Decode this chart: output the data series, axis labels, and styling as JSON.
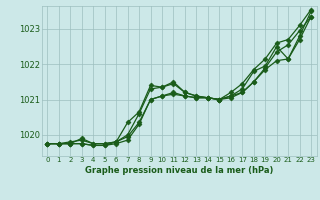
{
  "xlabel": "Graphe pression niveau de la mer (hPa)",
  "ylim": [
    1019.4,
    1023.65
  ],
  "xlim": [
    -0.5,
    23.5
  ],
  "yticks": [
    1020,
    1021,
    1022,
    1023
  ],
  "xticks": [
    0,
    1,
    2,
    3,
    4,
    5,
    6,
    7,
    8,
    9,
    10,
    11,
    12,
    13,
    14,
    15,
    16,
    17,
    18,
    19,
    20,
    21,
    22,
    23
  ],
  "bg_color": "#cce8e8",
  "grid_color": "#9dbfbf",
  "line_color": "#1a5c1a",
  "line1": [
    1019.75,
    1019.75,
    1019.75,
    1019.9,
    1019.75,
    1019.75,
    1019.8,
    1020.35,
    1020.65,
    1021.4,
    1021.35,
    1021.5,
    1021.2,
    1021.1,
    1021.05,
    1021.0,
    1021.1,
    1021.3,
    1021.8,
    1021.95,
    1022.5,
    1022.15,
    1022.8,
    1023.5
  ],
  "line2": [
    1019.75,
    1019.75,
    1019.75,
    1019.75,
    1019.7,
    1019.7,
    1019.75,
    1019.85,
    1020.3,
    1021.0,
    1021.1,
    1021.2,
    1021.1,
    1021.05,
    1021.05,
    1021.0,
    1021.05,
    1021.2,
    1021.5,
    1021.85,
    1022.1,
    1022.15,
    1022.7,
    1023.35
  ],
  "line3": [
    1019.75,
    1019.75,
    1019.75,
    1019.75,
    1019.7,
    1019.7,
    1019.8,
    1019.95,
    1020.35,
    1021.0,
    1021.1,
    1021.15,
    1021.1,
    1021.05,
    1021.05,
    1021.0,
    1021.1,
    1021.2,
    1021.5,
    1021.9,
    1022.35,
    1022.55,
    1022.95,
    1023.35
  ],
  "line4": [
    1019.75,
    1019.75,
    1019.8,
    1019.85,
    1019.75,
    1019.75,
    1019.8,
    1020.0,
    1020.6,
    1021.3,
    1021.35,
    1021.45,
    1021.2,
    1021.1,
    1021.05,
    1021.0,
    1021.2,
    1021.45,
    1021.85,
    1022.15,
    1022.6,
    1022.7,
    1023.1,
    1023.55
  ],
  "marker": "D",
  "markersize": 2.5,
  "linewidth": 0.9
}
